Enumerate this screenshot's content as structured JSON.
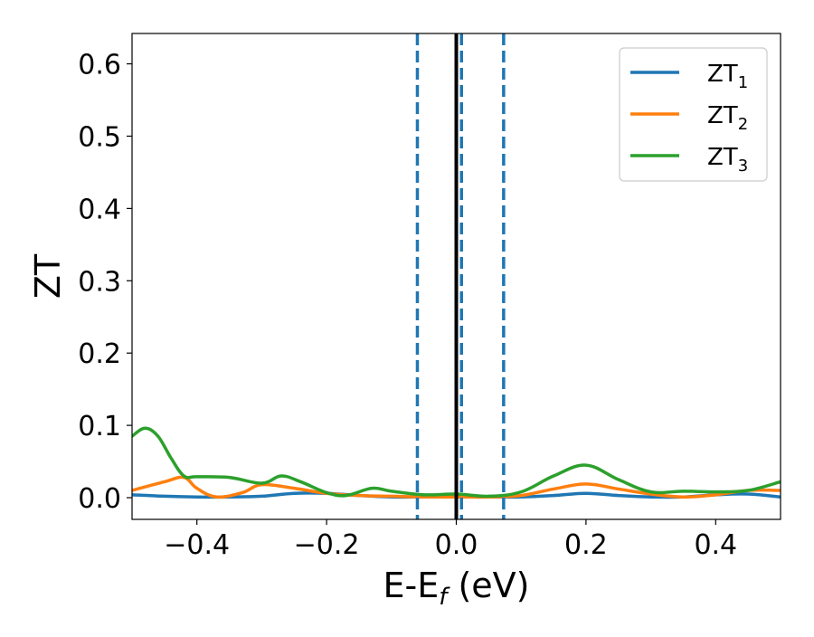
{
  "chart_data": {
    "type": "line",
    "title": "",
    "xlabel": "E-E",
    "xlabel_sub": "f",
    "xlabel_unit": " (eV)",
    "ylabel": "ZT",
    "xlim": [
      -0.5,
      0.5
    ],
    "ylim": [
      -0.03,
      0.642
    ],
    "xticks": [
      -0.4,
      -0.2,
      0.0,
      0.2,
      0.4
    ],
    "xtick_labels": [
      "−0.4",
      "−0.2",
      "0.0",
      "0.2",
      "0.4"
    ],
    "yticks": [
      0.0,
      0.1,
      0.2,
      0.3,
      0.4,
      0.5,
      0.6
    ],
    "ytick_labels": [
      "0.0",
      "0.1",
      "0.2",
      "0.3",
      "0.4",
      "0.5",
      "0.6"
    ],
    "grid": false,
    "legend_position": "top-right",
    "vertical_lines": [
      {
        "x": 0.0,
        "color": "#000000",
        "style": "solid"
      },
      {
        "x": -0.06,
        "color": "#1f77b4",
        "style": "dashed"
      },
      {
        "x": 0.008,
        "color": "#1f77b4",
        "style": "dashed"
      },
      {
        "x": 0.073,
        "color": "#1f77b4",
        "style": "dashed"
      }
    ],
    "series": [
      {
        "name": "ZT",
        "subscript": "1",
        "color": "#1f77b4",
        "x": [
          -0.5,
          -0.45,
          -0.4,
          -0.35,
          -0.3,
          -0.25,
          -0.2,
          -0.15,
          -0.1,
          -0.05,
          0.0,
          0.05,
          0.1,
          0.15,
          0.2,
          0.25,
          0.3,
          0.35,
          0.4,
          0.45,
          0.5
        ],
        "y": [
          0.004,
          0.002,
          0.001,
          0.001,
          0.002,
          0.006,
          0.006,
          0.003,
          0.001,
          0.001,
          0.001,
          0.001,
          0.001,
          0.003,
          0.006,
          0.003,
          0.001,
          0.001,
          0.004,
          0.005,
          0.001
        ]
      },
      {
        "name": "ZT",
        "subscript": "2",
        "color": "#ff7f0e",
        "x": [
          -0.5,
          -0.45,
          -0.42,
          -0.4,
          -0.37,
          -0.33,
          -0.3,
          -0.25,
          -0.2,
          -0.15,
          -0.1,
          -0.05,
          0.0,
          0.05,
          0.1,
          0.15,
          0.2,
          0.25,
          0.3,
          0.35,
          0.4,
          0.45,
          0.5
        ],
        "y": [
          0.01,
          0.022,
          0.028,
          0.013,
          0.001,
          0.007,
          0.018,
          0.013,
          0.006,
          0.003,
          0.002,
          0.001,
          0.001,
          0.001,
          0.003,
          0.012,
          0.019,
          0.012,
          0.005,
          0.001,
          0.004,
          0.01,
          0.01
        ]
      },
      {
        "name": "ZT",
        "subscript": "3",
        "color": "#2ca02c",
        "x": [
          -0.5,
          -0.48,
          -0.46,
          -0.44,
          -0.42,
          -0.4,
          -0.35,
          -0.3,
          -0.27,
          -0.24,
          -0.2,
          -0.17,
          -0.13,
          -0.1,
          -0.05,
          0.0,
          0.05,
          0.1,
          0.15,
          0.2,
          0.25,
          0.3,
          0.35,
          0.4,
          0.45,
          0.5
        ],
        "y": [
          0.085,
          0.096,
          0.085,
          0.055,
          0.03,
          0.029,
          0.028,
          0.02,
          0.03,
          0.022,
          0.007,
          0.003,
          0.013,
          0.009,
          0.004,
          0.005,
          0.002,
          0.008,
          0.03,
          0.045,
          0.025,
          0.008,
          0.009,
          0.008,
          0.01,
          0.022
        ]
      }
    ]
  }
}
